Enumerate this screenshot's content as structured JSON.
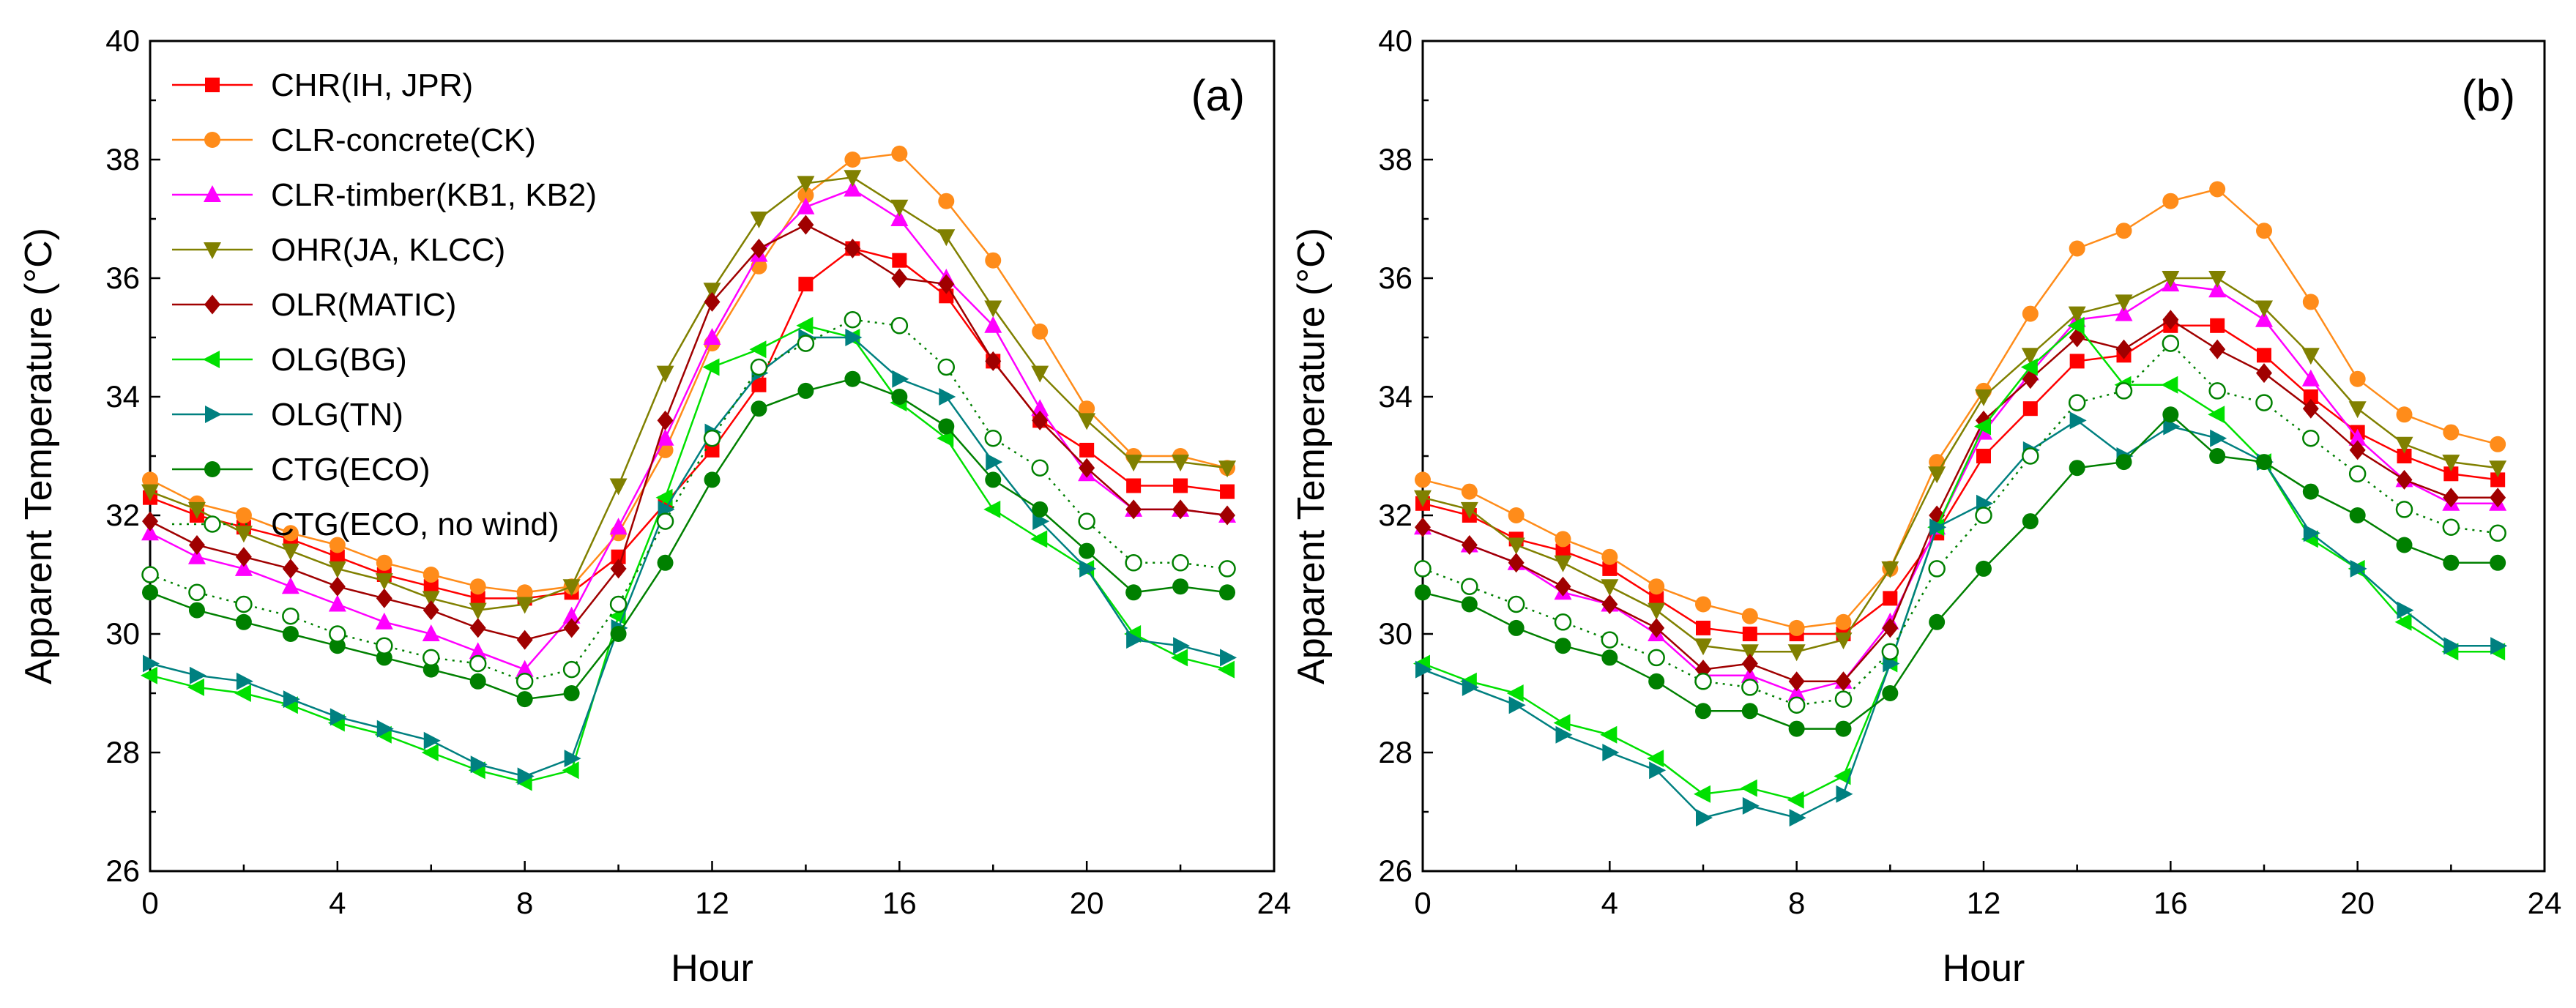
{
  "chart_data": [
    {
      "type": "line",
      "panel_label": "(a)",
      "xlabel": "Hour",
      "ylabel": "Apparent Temperature (°C)",
      "xlim": [
        0,
        24
      ],
      "ylim": [
        26,
        40
      ],
      "xticks": [
        0,
        4,
        8,
        12,
        16,
        20,
        24
      ],
      "yticks": [
        26,
        28,
        30,
        32,
        34,
        36,
        38,
        40
      ],
      "grid": false,
      "legend_position": "top-left",
      "x": [
        0,
        1,
        2,
        3,
        4,
        5,
        6,
        7,
        8,
        9,
        10,
        11,
        12,
        13,
        14,
        15,
        16,
        17,
        18,
        19,
        20,
        21,
        22,
        23
      ],
      "series": [
        {
          "name": "CHR(IH, JPR)",
          "color": "#ff0000",
          "marker": "square",
          "dash": "solid",
          "values": [
            32.3,
            32.0,
            31.8,
            31.6,
            31.3,
            31.0,
            30.8,
            30.6,
            30.6,
            30.7,
            31.3,
            32.2,
            33.1,
            34.2,
            35.9,
            36.5,
            36.3,
            35.7,
            34.6,
            33.6,
            33.1,
            32.5,
            32.5,
            32.4
          ]
        },
        {
          "name": "CLR-concrete(CK)",
          "color": "#ff8c1a",
          "marker": "circle",
          "dash": "solid",
          "values": [
            32.6,
            32.2,
            32.0,
            31.7,
            31.5,
            31.2,
            31.0,
            30.8,
            30.7,
            30.8,
            31.7,
            33.1,
            34.9,
            36.2,
            37.4,
            38.0,
            38.1,
            37.3,
            36.3,
            35.1,
            33.8,
            33.0,
            33.0,
            32.8
          ]
        },
        {
          "name": "CLR-timber(KB1, KB2)",
          "color": "#ff00ff",
          "marker": "triangle-up",
          "dash": "solid",
          "values": [
            31.7,
            31.3,
            31.1,
            30.8,
            30.5,
            30.2,
            30.0,
            29.7,
            29.4,
            30.3,
            31.8,
            33.3,
            35.0,
            36.4,
            37.2,
            37.5,
            37.0,
            36.0,
            35.2,
            33.8,
            32.7,
            32.1,
            32.1,
            32.0
          ]
        },
        {
          "name": "OHR(JA, KLCC)",
          "color": "#808000",
          "marker": "triangle-down",
          "dash": "solid",
          "values": [
            32.4,
            32.1,
            31.7,
            31.4,
            31.1,
            30.9,
            30.6,
            30.4,
            30.5,
            30.8,
            32.5,
            34.4,
            35.8,
            37.0,
            37.6,
            37.7,
            37.2,
            36.7,
            35.5,
            34.4,
            33.6,
            32.9,
            32.9,
            32.8
          ]
        },
        {
          "name": "OLR(MATIC)",
          "color": "#a00000",
          "marker": "diamond",
          "dash": "solid",
          "values": [
            31.9,
            31.5,
            31.3,
            31.1,
            30.8,
            30.6,
            30.4,
            30.1,
            29.9,
            30.1,
            31.1,
            33.6,
            35.6,
            36.5,
            36.9,
            36.5,
            36.0,
            35.9,
            34.6,
            33.6,
            32.8,
            32.1,
            32.1,
            32.0
          ]
        },
        {
          "name": "OLG(BG)",
          "color": "#00e000",
          "marker": "triangle-left",
          "dash": "solid",
          "values": [
            29.3,
            29.1,
            29.0,
            28.8,
            28.5,
            28.3,
            28.0,
            27.7,
            27.5,
            27.7,
            30.3,
            32.3,
            34.5,
            34.8,
            35.2,
            35.0,
            33.9,
            33.3,
            32.1,
            31.6,
            31.1,
            30.0,
            29.6,
            29.4
          ]
        },
        {
          "name": "OLG(TN)",
          "color": "#008080",
          "marker": "triangle-right",
          "dash": "solid",
          "values": [
            29.5,
            29.3,
            29.2,
            28.9,
            28.6,
            28.4,
            28.2,
            27.8,
            27.6,
            27.9,
            30.1,
            32.1,
            33.4,
            34.4,
            35.0,
            35.0,
            34.3,
            34.0,
            32.9,
            31.9,
            31.1,
            29.9,
            29.8,
            29.6
          ]
        },
        {
          "name": "CTG(ECO)",
          "color": "#008000",
          "marker": "circle",
          "dash": "solid",
          "values": [
            30.7,
            30.4,
            30.2,
            30.0,
            29.8,
            29.6,
            29.4,
            29.2,
            28.9,
            29.0,
            30.0,
            31.2,
            32.6,
            33.8,
            34.1,
            34.3,
            34.0,
            33.5,
            32.6,
            32.1,
            31.4,
            30.7,
            30.8,
            30.7
          ]
        },
        {
          "name": "CTG(ECO, no wind)",
          "color": "#008000",
          "marker": "open-circle",
          "dash": "dotted",
          "values": [
            31.0,
            30.7,
            30.5,
            30.3,
            30.0,
            29.8,
            29.6,
            29.5,
            29.2,
            29.4,
            30.5,
            31.9,
            33.3,
            34.5,
            34.9,
            35.3,
            35.2,
            34.5,
            33.3,
            32.8,
            31.9,
            31.2,
            31.2,
            31.1
          ]
        }
      ]
    },
    {
      "type": "line",
      "panel_label": "(b)",
      "xlabel": "Hour",
      "ylabel": "Apparent Temperature (°C)",
      "xlim": [
        0,
        24
      ],
      "ylim": [
        26,
        40
      ],
      "xticks": [
        0,
        4,
        8,
        12,
        16,
        20,
        24
      ],
      "yticks": [
        26,
        28,
        30,
        32,
        34,
        36,
        38,
        40
      ],
      "grid": false,
      "legend_position": "none",
      "x": [
        0,
        1,
        2,
        3,
        4,
        5,
        6,
        7,
        8,
        9,
        10,
        11,
        12,
        13,
        14,
        15,
        16,
        17,
        18,
        19,
        20,
        21,
        22,
        23
      ],
      "series": [
        {
          "name": "CHR(IH, JPR)",
          "color": "#ff0000",
          "marker": "square",
          "dash": "solid",
          "values": [
            32.2,
            32.0,
            31.6,
            31.4,
            31.1,
            30.6,
            30.1,
            30.0,
            30.0,
            30.0,
            30.6,
            31.7,
            33.0,
            33.8,
            34.6,
            34.7,
            35.2,
            35.2,
            34.7,
            34.0,
            33.4,
            33.0,
            32.7,
            32.6
          ]
        },
        {
          "name": "CLR-concrete(CK)",
          "color": "#ff8c1a",
          "marker": "circle",
          "dash": "solid",
          "values": [
            32.6,
            32.4,
            32.0,
            31.6,
            31.3,
            30.8,
            30.5,
            30.3,
            30.1,
            30.2,
            31.1,
            32.9,
            34.1,
            35.4,
            36.5,
            36.8,
            37.3,
            37.5,
            36.8,
            35.6,
            34.3,
            33.7,
            33.4,
            33.2
          ]
        },
        {
          "name": "CLR-timber(KB1, KB2)",
          "color": "#ff00ff",
          "marker": "triangle-up",
          "dash": "solid",
          "values": [
            31.8,
            31.5,
            31.2,
            30.7,
            30.5,
            30.0,
            29.3,
            29.3,
            29.0,
            29.2,
            30.2,
            31.8,
            33.4,
            34.4,
            35.3,
            35.4,
            35.9,
            35.8,
            35.3,
            34.3,
            33.3,
            32.6,
            32.2,
            32.2
          ]
        },
        {
          "name": "OHR(JA, KLCC)",
          "color": "#808000",
          "marker": "triangle-down",
          "dash": "solid",
          "values": [
            32.3,
            32.1,
            31.5,
            31.2,
            30.8,
            30.4,
            29.8,
            29.7,
            29.7,
            29.9,
            31.1,
            32.7,
            34.0,
            34.7,
            35.4,
            35.6,
            36.0,
            36.0,
            35.5,
            34.7,
            33.8,
            33.2,
            32.9,
            32.8
          ]
        },
        {
          "name": "OLR(MATIC)",
          "color": "#a00000",
          "marker": "diamond",
          "dash": "solid",
          "values": [
            31.8,
            31.5,
            31.2,
            30.8,
            30.5,
            30.1,
            29.4,
            29.5,
            29.2,
            29.2,
            30.1,
            32.0,
            33.6,
            34.3,
            35.0,
            34.8,
            35.3,
            34.8,
            34.4,
            33.8,
            33.1,
            32.6,
            32.3,
            32.3
          ]
        },
        {
          "name": "OLG(BG)",
          "color": "#00e000",
          "marker": "triangle-left",
          "dash": "solid",
          "values": [
            29.5,
            29.2,
            29.0,
            28.5,
            28.3,
            27.9,
            27.3,
            27.4,
            27.2,
            27.6,
            29.5,
            31.8,
            33.5,
            34.5,
            35.2,
            34.2,
            34.2,
            33.7,
            32.9,
            31.6,
            31.1,
            30.2,
            29.7,
            29.7
          ]
        },
        {
          "name": "OLG(TN)",
          "color": "#008080",
          "marker": "triangle-right",
          "dash": "solid",
          "values": [
            29.4,
            29.1,
            28.8,
            28.3,
            28.0,
            27.7,
            26.9,
            27.1,
            26.9,
            27.3,
            29.5,
            31.8,
            32.2,
            33.1,
            33.6,
            33.0,
            33.5,
            33.3,
            32.9,
            31.7,
            31.1,
            30.4,
            29.8,
            29.8
          ]
        },
        {
          "name": "CTG(ECO)",
          "color": "#008000",
          "marker": "circle",
          "dash": "solid",
          "values": [
            30.7,
            30.5,
            30.1,
            29.8,
            29.6,
            29.2,
            28.7,
            28.7,
            28.4,
            28.4,
            29.0,
            30.2,
            31.1,
            31.9,
            32.8,
            32.9,
            33.7,
            33.0,
            32.9,
            32.4,
            32.0,
            31.5,
            31.2,
            31.2
          ]
        },
        {
          "name": "CTG(ECO, no wind)",
          "color": "#008000",
          "marker": "open-circle",
          "dash": "dotted",
          "values": [
            31.1,
            30.8,
            30.5,
            30.2,
            29.9,
            29.6,
            29.2,
            29.1,
            28.8,
            28.9,
            29.7,
            31.1,
            32.0,
            33.0,
            33.9,
            34.1,
            34.9,
            34.1,
            33.9,
            33.3,
            32.7,
            32.1,
            31.8,
            31.7
          ]
        }
      ]
    }
  ]
}
